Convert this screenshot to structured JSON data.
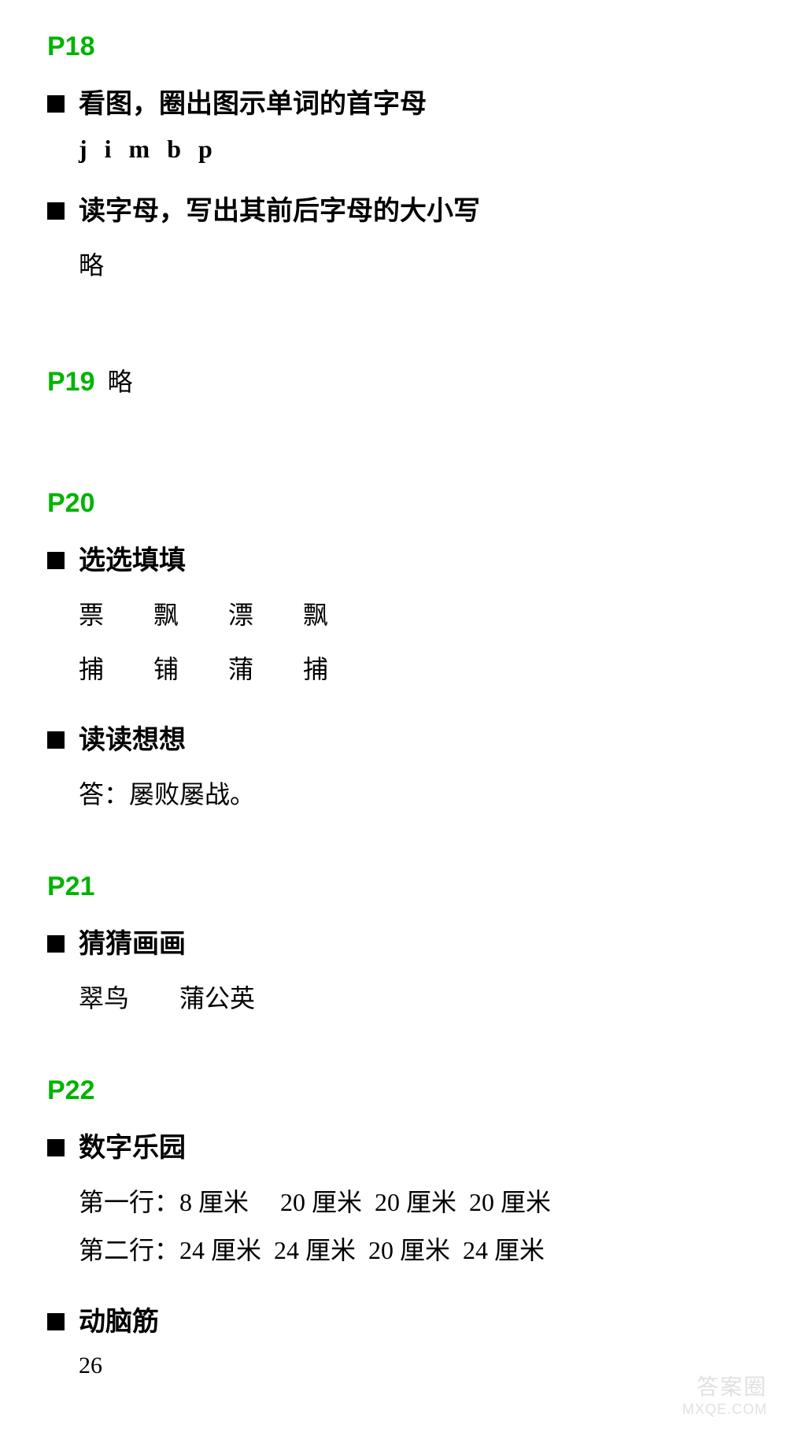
{
  "pages": {
    "p18": {
      "heading": "P18",
      "sections": [
        {
          "title": "看图，圈出图示单词的首字母",
          "content_type": "letters",
          "content": "j i m b p"
        },
        {
          "title": "读字母，写出其前后字母的大小写",
          "content_type": "text",
          "content": "略"
        }
      ]
    },
    "p19": {
      "heading": "P19",
      "inline_content": "略"
    },
    "p20": {
      "heading": "P20",
      "sections": [
        {
          "title": "选选填填",
          "content_type": "char_grid",
          "rows": [
            [
              "票",
              "飘",
              "漂",
              "飘"
            ],
            [
              "捕",
              "铺",
              "蒲",
              "捕"
            ]
          ]
        },
        {
          "title": "读读想想",
          "content_type": "text",
          "content": "答：屡败屡战。"
        }
      ]
    },
    "p21": {
      "heading": "P21",
      "sections": [
        {
          "title": "猜猜画画",
          "content_type": "text",
          "content": "翠鸟  蒲公英"
        }
      ]
    },
    "p22": {
      "heading": "P22",
      "sections": [
        {
          "title": "数字乐园",
          "content_type": "lines",
          "lines": [
            "第一行：8 厘米  20 厘米 20 厘米 20 厘米",
            "第二行：24 厘米 24 厘米 20 厘米 24 厘米"
          ]
        },
        {
          "title": "动脑筋",
          "content_type": "none"
        }
      ]
    }
  },
  "page_number": "26",
  "watermark": {
    "top": "答案圈",
    "bottom": "MXQE.COM"
  },
  "colors": {
    "heading_green": "#00b400",
    "text_black": "#000000",
    "background": "#ffffff",
    "watermark_gray": "#888888"
  },
  "typography": {
    "heading_fontsize": 34,
    "section_title_fontsize": 34,
    "content_fontsize": 32,
    "page_number_fontsize": 30
  }
}
